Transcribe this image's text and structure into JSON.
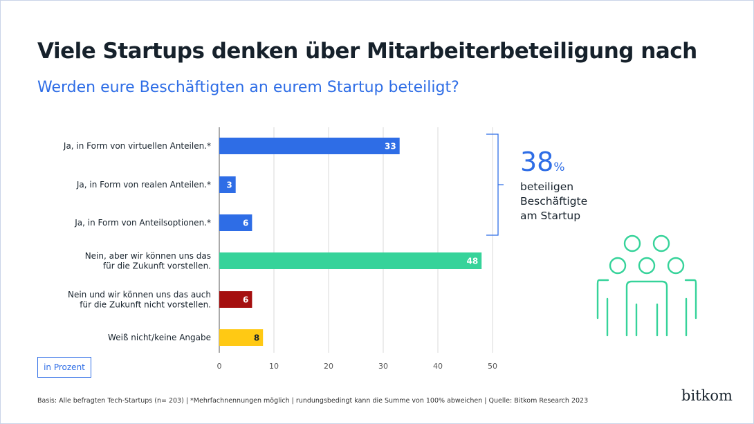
{
  "title": "Viele Startups denken über Mitarbeiterbeteiligung nach",
  "subtitle": "Werden eure Beschäftigten an eurem Startup beteiligt?",
  "unit_label": "in Prozent",
  "footnote": "Basis: Alle befragten Tech-Startups (n= 203) | *Mehrfachnennungen möglich | rundungsbedingt kann die Summe von 100% abweichen | Quelle: Bitkom Research 2023",
  "logo": "bitkom",
  "callout": {
    "value": "38",
    "unit": "%",
    "lines": [
      "beteiligen",
      "Beschäftigte",
      "am Startup"
    ]
  },
  "icon": "people-group-icon",
  "chart_data": {
    "type": "bar",
    "orientation": "horizontal",
    "categories": [
      [
        "Ja, in Form von virtuellen Anteilen.*"
      ],
      [
        "Ja, in Form von realen Anteilen.*"
      ],
      [
        "Ja, in Form von Anteilsoptionen.*"
      ],
      [
        "Nein, aber wir können uns das",
        "für die Zukunft vorstellen."
      ],
      [
        "Nein und wir können uns das auch",
        "für die Zukunft nicht vorstellen."
      ],
      [
        "Weiß nicht/keine Angabe"
      ]
    ],
    "values": [
      33,
      3,
      6,
      48,
      6,
      8
    ],
    "colors": [
      "#2e6de6",
      "#2e6de6",
      "#2e6de6",
      "#36d39a",
      "#a50f0f",
      "#ffc914"
    ],
    "label_colors": [
      "#ffffff",
      "#ffffff",
      "#ffffff",
      "#ffffff",
      "#ffffff",
      "#16212b"
    ],
    "xlim": [
      0,
      50
    ],
    "xticks": [
      0,
      10,
      20,
      30,
      40,
      50
    ],
    "grid": true
  }
}
